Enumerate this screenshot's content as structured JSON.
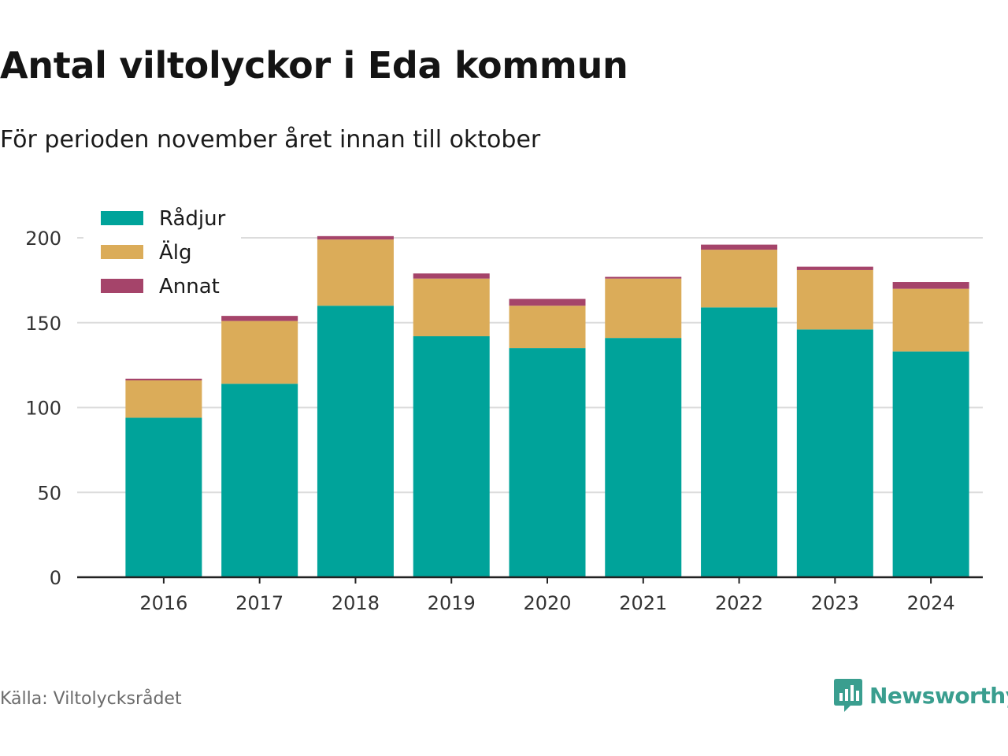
{
  "title": "Antal viltolyckor i Eda kommun",
  "subtitle": "För perioden november året innan till oktober",
  "source": "Källa: Viltolycksrådet",
  "brand": {
    "name": "Newsworthy",
    "icon": "newsworthy-logo-icon",
    "color": "#3a9e8f"
  },
  "chart_data": {
    "type": "bar",
    "stacked": true,
    "categories": [
      "2016",
      "2017",
      "2018",
      "2019",
      "2020",
      "2021",
      "2022",
      "2023",
      "2024"
    ],
    "series": [
      {
        "name": "Rådjur",
        "color": "#00a39a",
        "values": [
          94,
          114,
          160,
          142,
          135,
          141,
          159,
          146,
          133
        ]
      },
      {
        "name": "Älg",
        "color": "#dbac59",
        "values": [
          22,
          37,
          39,
          34,
          25,
          35,
          34,
          35,
          37
        ]
      },
      {
        "name": "Annat",
        "color": "#a5446a",
        "values": [
          1,
          3,
          2,
          3,
          4,
          1,
          3,
          2,
          4
        ]
      }
    ],
    "ylim": [
      0,
      200
    ],
    "yticks": [
      0,
      50,
      100,
      150,
      200
    ],
    "xlabel": "",
    "ylabel": "",
    "grid": true,
    "legend_position": "top-left"
  }
}
